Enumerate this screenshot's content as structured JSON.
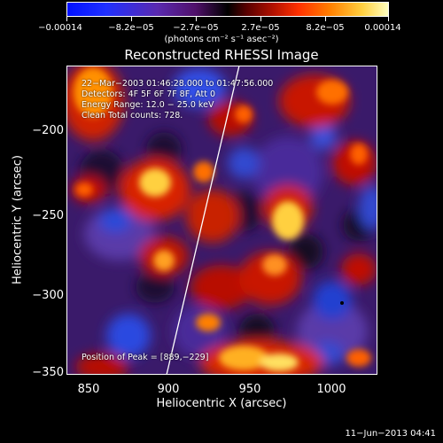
{
  "colorbar": {
    "tick_labels": [
      "−0.00014",
      "−8.2e−05",
      "−2.7e−05",
      "2.7e−05",
      "8.2e−05",
      "0.00014"
    ],
    "units": "(photons cm⁻² s⁻¹ asec⁻²)"
  },
  "title": "Reconstructed RHESSI Image",
  "info": {
    "line1": "22−Mar−2003 01:46:28.000 to 01:47:56.000",
    "line2": "Detectors: 4F 5F 6F 7F 8F, Att 0",
    "line3": "Energy Range: 12.0 − 25.0 keV",
    "line4": "Clean     Total counts: 728.",
    "peak": "Position of Peak = [889,−229]"
  },
  "axes": {
    "xlabel": "Heliocentric X (arcsec)",
    "ylabel": "Heliocentric Y (arcsec)",
    "xticks": [
      "850",
      "900",
      "950",
      "1000"
    ],
    "yticks": [
      "−200",
      "−250",
      "−300",
      "−350"
    ],
    "xlim": [
      835,
      1027
    ],
    "ylim": [
      -352,
      -160
    ]
  },
  "timestamp": "11−Jun−2013 04:41"
}
